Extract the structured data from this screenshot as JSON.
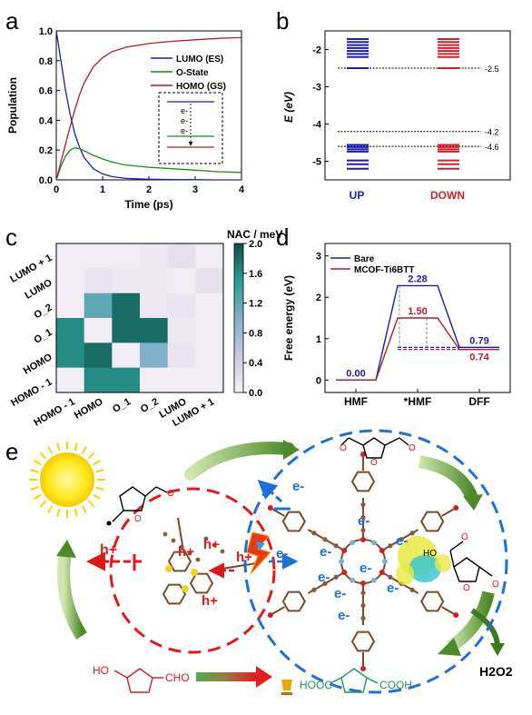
{
  "panels": {
    "a": "a",
    "b": "b",
    "c": "c",
    "d": "d",
    "e": "e"
  },
  "colors": {
    "blue": "#1c1cb4",
    "green": "#1a8a1a",
    "red": "#b41c2c",
    "teal": "#1a8a82"
  },
  "chart_data": [
    {
      "id": "a",
      "type": "line",
      "xlabel": "Time (ps)",
      "ylabel": "Population",
      "xlim": [
        0,
        4
      ],
      "ylim": [
        0,
        1
      ],
      "xticks": [
        "0",
        "1",
        "2",
        "3",
        "4"
      ],
      "yticks": [
        "0.0",
        "0.2",
        "0.4",
        "0.6",
        "0.8",
        "1.0"
      ],
      "legend_position": "right",
      "inset_labels": [
        "e-",
        "e-",
        "e-"
      ],
      "series": [
        {
          "name": "LUMO (ES)",
          "color": "#1c1cb4",
          "x": [
            0,
            0.1,
            0.2,
            0.3,
            0.4,
            0.5,
            0.6,
            0.8,
            1.0,
            1.2,
            1.5,
            2.0,
            2.5,
            3.0,
            3.5,
            4.0
          ],
          "y": [
            1.0,
            0.8,
            0.6,
            0.44,
            0.31,
            0.22,
            0.15,
            0.075,
            0.04,
            0.022,
            0.01,
            0.004,
            0.002,
            0.001,
            0.0,
            0.0
          ]
        },
        {
          "name": "O-State",
          "color": "#1a8a1a",
          "x": [
            0,
            0.1,
            0.2,
            0.3,
            0.4,
            0.5,
            0.6,
            0.8,
            1.0,
            1.2,
            1.5,
            2.0,
            2.5,
            3.0,
            3.5,
            4.0
          ],
          "y": [
            0.0,
            0.09,
            0.16,
            0.2,
            0.215,
            0.21,
            0.195,
            0.165,
            0.14,
            0.12,
            0.1,
            0.085,
            0.075,
            0.065,
            0.055,
            0.05
          ]
        },
        {
          "name": "HOMO (GS)",
          "color": "#b41c2c",
          "x": [
            0,
            0.1,
            0.2,
            0.3,
            0.4,
            0.5,
            0.6,
            0.8,
            1.0,
            1.2,
            1.5,
            2.0,
            2.5,
            3.0,
            3.5,
            4.0
          ],
          "y": [
            0.0,
            0.12,
            0.24,
            0.36,
            0.47,
            0.57,
            0.65,
            0.76,
            0.82,
            0.86,
            0.89,
            0.915,
            0.93,
            0.94,
            0.95,
            0.955
          ]
        }
      ]
    },
    {
      "id": "b",
      "type": "bar",
      "ylabel": "E (eV)",
      "ylim": [
        -5.5,
        -1.5
      ],
      "yticks": [
        "-2",
        "-3",
        "-4",
        "-5"
      ],
      "categories": [
        "UP",
        "DOWN"
      ],
      "category_colors": [
        "#1c1cb4",
        "#d0202a"
      ],
      "levels": {
        "UP": [
          -1.72,
          -1.8,
          -1.88,
          -1.96,
          -2.04,
          -2.12,
          -2.2,
          -2.5,
          -4.56,
          -4.62,
          -4.68,
          -4.74,
          -4.98,
          -5.08,
          -5.2
        ],
        "DOWN": [
          -1.72,
          -1.8,
          -1.88,
          -1.96,
          -2.04,
          -2.12,
          -2.2,
          -2.5,
          -4.56,
          -4.62,
          -4.68,
          -4.74,
          -4.98,
          -5.08,
          -5.2
        ]
      },
      "reference_lines": [
        {
          "value": -2.5,
          "label": "-2.5"
        },
        {
          "value": -4.2,
          "label": "-4.2"
        },
        {
          "value": -4.6,
          "label": "-4.6"
        }
      ]
    },
    {
      "id": "c",
      "type": "heatmap",
      "colorbar_label": "NAC / meV",
      "colorbar_ticks": [
        "0.0",
        "0.4",
        "0.8",
        "1.2",
        "1.6",
        "2.0"
      ],
      "zlim": [
        0,
        2
      ],
      "x_labels": [
        "HOMO - 1",
        "HOMO",
        "O_1",
        "O_2",
        "LUMO",
        "LUMO + 1"
      ],
      "y_labels": [
        "LUMO + 1",
        "LUMO",
        "O_2",
        "O_1",
        "HOMO",
        "HOMO - 1"
      ],
      "values": [
        [
          0.05,
          0.05,
          0.05,
          0.1,
          0.2,
          0.05
        ],
        [
          0.05,
          0.15,
          0.1,
          0.1,
          0.05,
          0.2
        ],
        [
          0.05,
          1.2,
          1.8,
          0.1,
          0.15,
          0.05
        ],
        [
          1.6,
          0.05,
          1.8,
          1.8,
          0.1,
          0.05
        ],
        [
          1.6,
          1.8,
          0.05,
          1.0,
          0.15,
          0.05
        ],
        [
          0.05,
          1.6,
          1.6,
          0.05,
          0.05,
          0.05
        ]
      ]
    },
    {
      "id": "d",
      "type": "line",
      "ylabel": "Free energy (eV)",
      "ylim": [
        -0.3,
        3.3
      ],
      "yticks": [
        "0",
        "1",
        "2",
        "3"
      ],
      "categories": [
        "HMF",
        "*HMF",
        "DFF"
      ],
      "legend_position": "top-left",
      "series": [
        {
          "name": "Bare",
          "color": "#1c1cb4",
          "values": [
            0.0,
            2.28,
            0.79
          ],
          "labels": [
            "0.00",
            "2.28",
            "0.79"
          ]
        },
        {
          "name": "MCOF-Ti6BTT",
          "color": "#b41c2c",
          "values": [
            0.0,
            1.5,
            0.74
          ],
          "labels": [
            "",
            "1.50",
            "0.74"
          ]
        }
      ]
    }
  ],
  "scheme": {
    "holes": [
      "h+",
      "h+",
      "h+",
      "h+",
      "h+"
    ],
    "electrons": [
      "e-",
      "e-",
      "e-",
      "e-",
      "e-",
      "e-",
      "e-",
      "e-",
      "e-",
      "e-"
    ],
    "reactant_groups": [
      "HO",
      "CHO"
    ],
    "product_groups": [
      "HOOC",
      "COOH"
    ],
    "acid_group": "HO",
    "h2o2": "H2O2"
  }
}
